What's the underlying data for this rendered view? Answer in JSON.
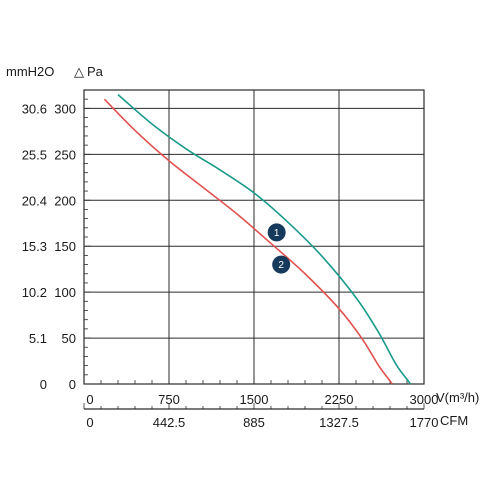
{
  "chart_data": {
    "type": "line",
    "units": {
      "left_outer": "mmH2O",
      "left_inner": "Pa",
      "delta_symbol": "△",
      "bottom_primary": "V(m³/h)",
      "bottom_secondary": "CFM"
    },
    "y_ticks_pa": [
      "0",
      "50",
      "100",
      "150",
      "200",
      "250",
      "300"
    ],
    "y_ticks_mmh2o": [
      "0",
      "5.1",
      "10.2",
      "15.3",
      "20.4",
      "25.5",
      "30.6"
    ],
    "x_ticks_m3h": [
      "0",
      "750",
      "1500",
      "2250",
      "3000"
    ],
    "x_ticks_cfm": [
      "0",
      "442.5",
      "885",
      "1327.5",
      "1770"
    ],
    "xlim": [
      0,
      3000
    ],
    "ylim": [
      0,
      320
    ],
    "grid": true,
    "series": [
      {
        "marker": "1",
        "color": "#1a9a8a",
        "x": [
          300,
          600,
          900,
          1200,
          1500,
          1800,
          2100,
          2400,
          2600,
          2750,
          2850,
          2880
        ],
        "y": [
          315,
          283,
          256,
          233,
          208,
          176,
          139,
          94,
          56,
          22,
          5,
          0
        ]
      },
      {
        "marker": "2",
        "color": "#e0524f",
        "x": [
          180,
          450,
          750,
          1050,
          1350,
          1650,
          1950,
          2250,
          2450,
          2600,
          2690,
          2720
        ],
        "y": [
          310,
          276,
          243,
          214,
          185,
          153,
          120,
          82,
          50,
          20,
          5,
          0
        ]
      }
    ]
  }
}
